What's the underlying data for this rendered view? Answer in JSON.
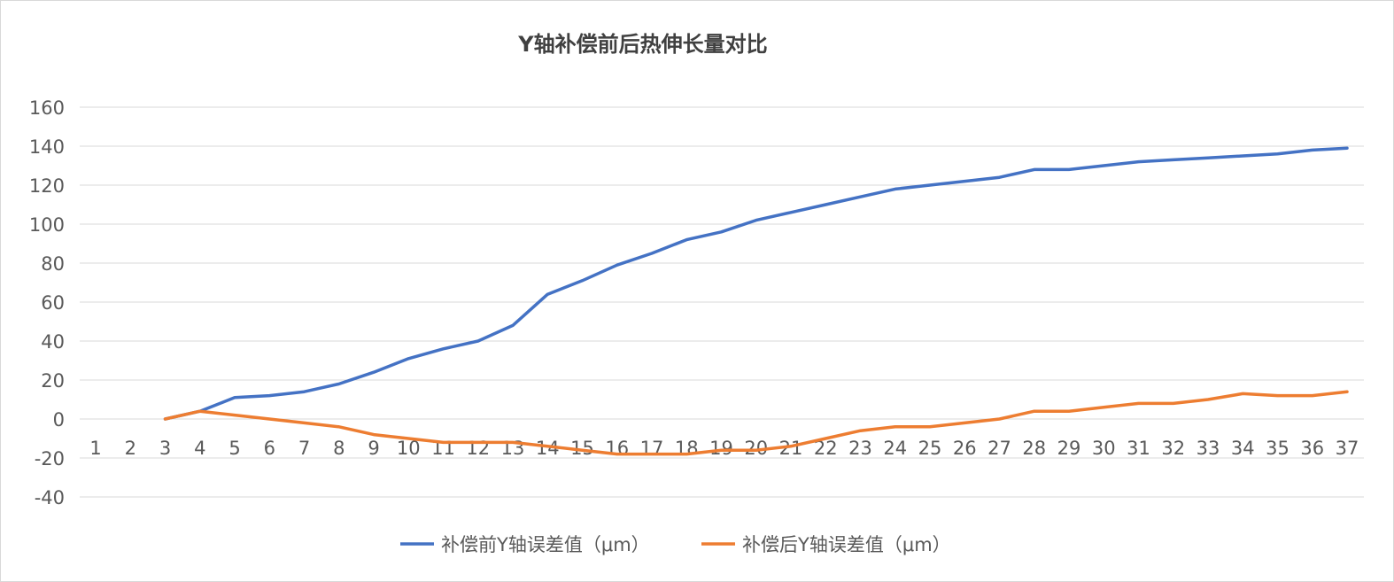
{
  "chart_data": {
    "type": "line",
    "title": "Y轴补偿前后热伸长量对比",
    "xlabel": "",
    "ylabel": "",
    "ylim": [
      -40,
      160
    ],
    "yticks": [
      -40,
      -20,
      0,
      20,
      40,
      60,
      80,
      100,
      120,
      140,
      160
    ],
    "categories": [
      "1",
      "2",
      "3",
      "4",
      "5",
      "6",
      "7",
      "8",
      "9",
      "10",
      "11",
      "12",
      "13",
      "14",
      "15",
      "16",
      "17",
      "18",
      "19",
      "20",
      "21",
      "22",
      "23",
      "24",
      "25",
      "26",
      "27",
      "28",
      "29",
      "30",
      "31",
      "32",
      "33",
      "34",
      "35",
      "36",
      "37"
    ],
    "grid": true,
    "legend_position": "bottom",
    "series": [
      {
        "name": "补偿前Y轴误差值（μm）",
        "color": "#4472c4",
        "values": [
          null,
          null,
          0,
          4,
          11,
          12,
          14,
          18,
          24,
          31,
          36,
          40,
          48,
          64,
          71,
          79,
          85,
          92,
          96,
          102,
          106,
          110,
          114,
          118,
          120,
          122,
          124,
          128,
          128,
          130,
          132,
          133,
          134,
          135,
          136,
          138,
          139
        ]
      },
      {
        "name": "补偿后Y轴误差值（μm）",
        "color": "#ed7d31",
        "values": [
          null,
          null,
          0,
          4,
          2,
          0,
          -2,
          -4,
          -8,
          -10,
          -12,
          -12,
          -12,
          -14,
          -16,
          -18,
          -18,
          -18,
          -16,
          -16,
          -14,
          -10,
          -6,
          -4,
          -4,
          -2,
          0,
          4,
          4,
          6,
          8,
          8,
          10,
          13,
          12,
          12,
          14
        ]
      }
    ]
  }
}
